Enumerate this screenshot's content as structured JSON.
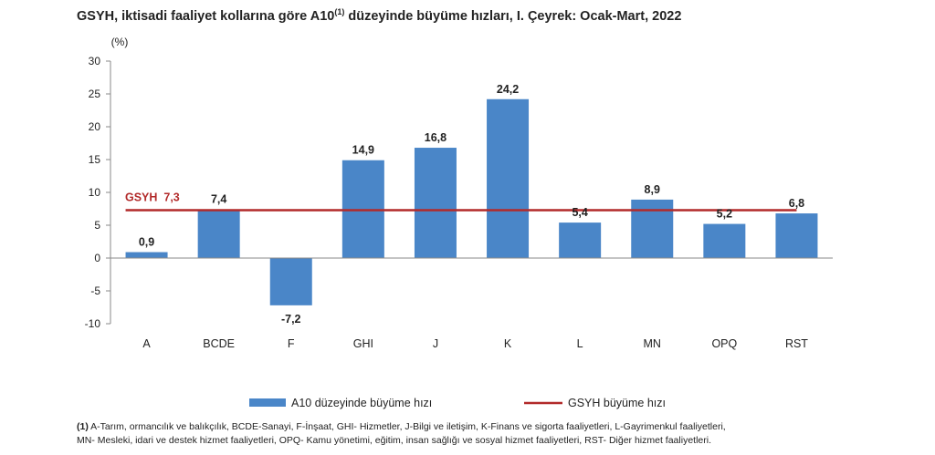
{
  "title": {
    "text_before": "GSYH, iktisadi faaliyet kollarına göre A10",
    "superscript": "(1)",
    "text_after": " düzeyinde büyüme hızları, I. Çeyrek: Ocak-Mart, 2022"
  },
  "chart_data": {
    "type": "bar",
    "unit_label": "(%)",
    "categories": [
      "A",
      "BCDE",
      "F",
      "GHI",
      "J",
      "K",
      "L",
      "MN",
      "OPQ",
      "RST"
    ],
    "series": [
      {
        "name": "A10 düzeyinde büyüme hızı",
        "values": [
          0.9,
          7.4,
          -7.2,
          14.9,
          16.8,
          24.2,
          5.4,
          8.9,
          5.2,
          6.8
        ],
        "labels": [
          "0,9",
          "7,4",
          "-7,2",
          "14,9",
          "16,8",
          "24,2",
          "5,4",
          "8,9",
          "5,2",
          "6,8"
        ],
        "color": "#4a86c8"
      }
    ],
    "reference_line": {
      "name": "GSYH büyüme hızı",
      "value": 7.3,
      "label": "GSYH  7,3",
      "color": "#b22a2a"
    },
    "ylim": [
      -10,
      30
    ],
    "yticks": [
      -10,
      -5,
      0,
      5,
      10,
      15,
      20,
      25,
      30
    ],
    "ytick_labels": [
      "-10",
      "-5",
      "0",
      "5",
      "10",
      "15",
      "20",
      "25",
      "30"
    ],
    "grid": false,
    "legend_position": "bottom"
  },
  "footnote": {
    "marker": "(1)",
    "line1": " A-Tarım, ormancılık ve balıkçılık, BCDE-Sanayi, F-İnşaat, GHI- Hizmetler, J-Bilgi ve iletişim, K-Finans ve sigorta faaliyetleri, L-Gayrimenkul faaliyetleri,",
    "line2": "MN- Mesleki, idari ve destek hizmet faaliyetleri, OPQ- Kamu yönetimi, eğitim, insan sağlığı ve sosyal hizmet faaliyetleri, RST- Diğer hizmet faaliyetleri."
  }
}
